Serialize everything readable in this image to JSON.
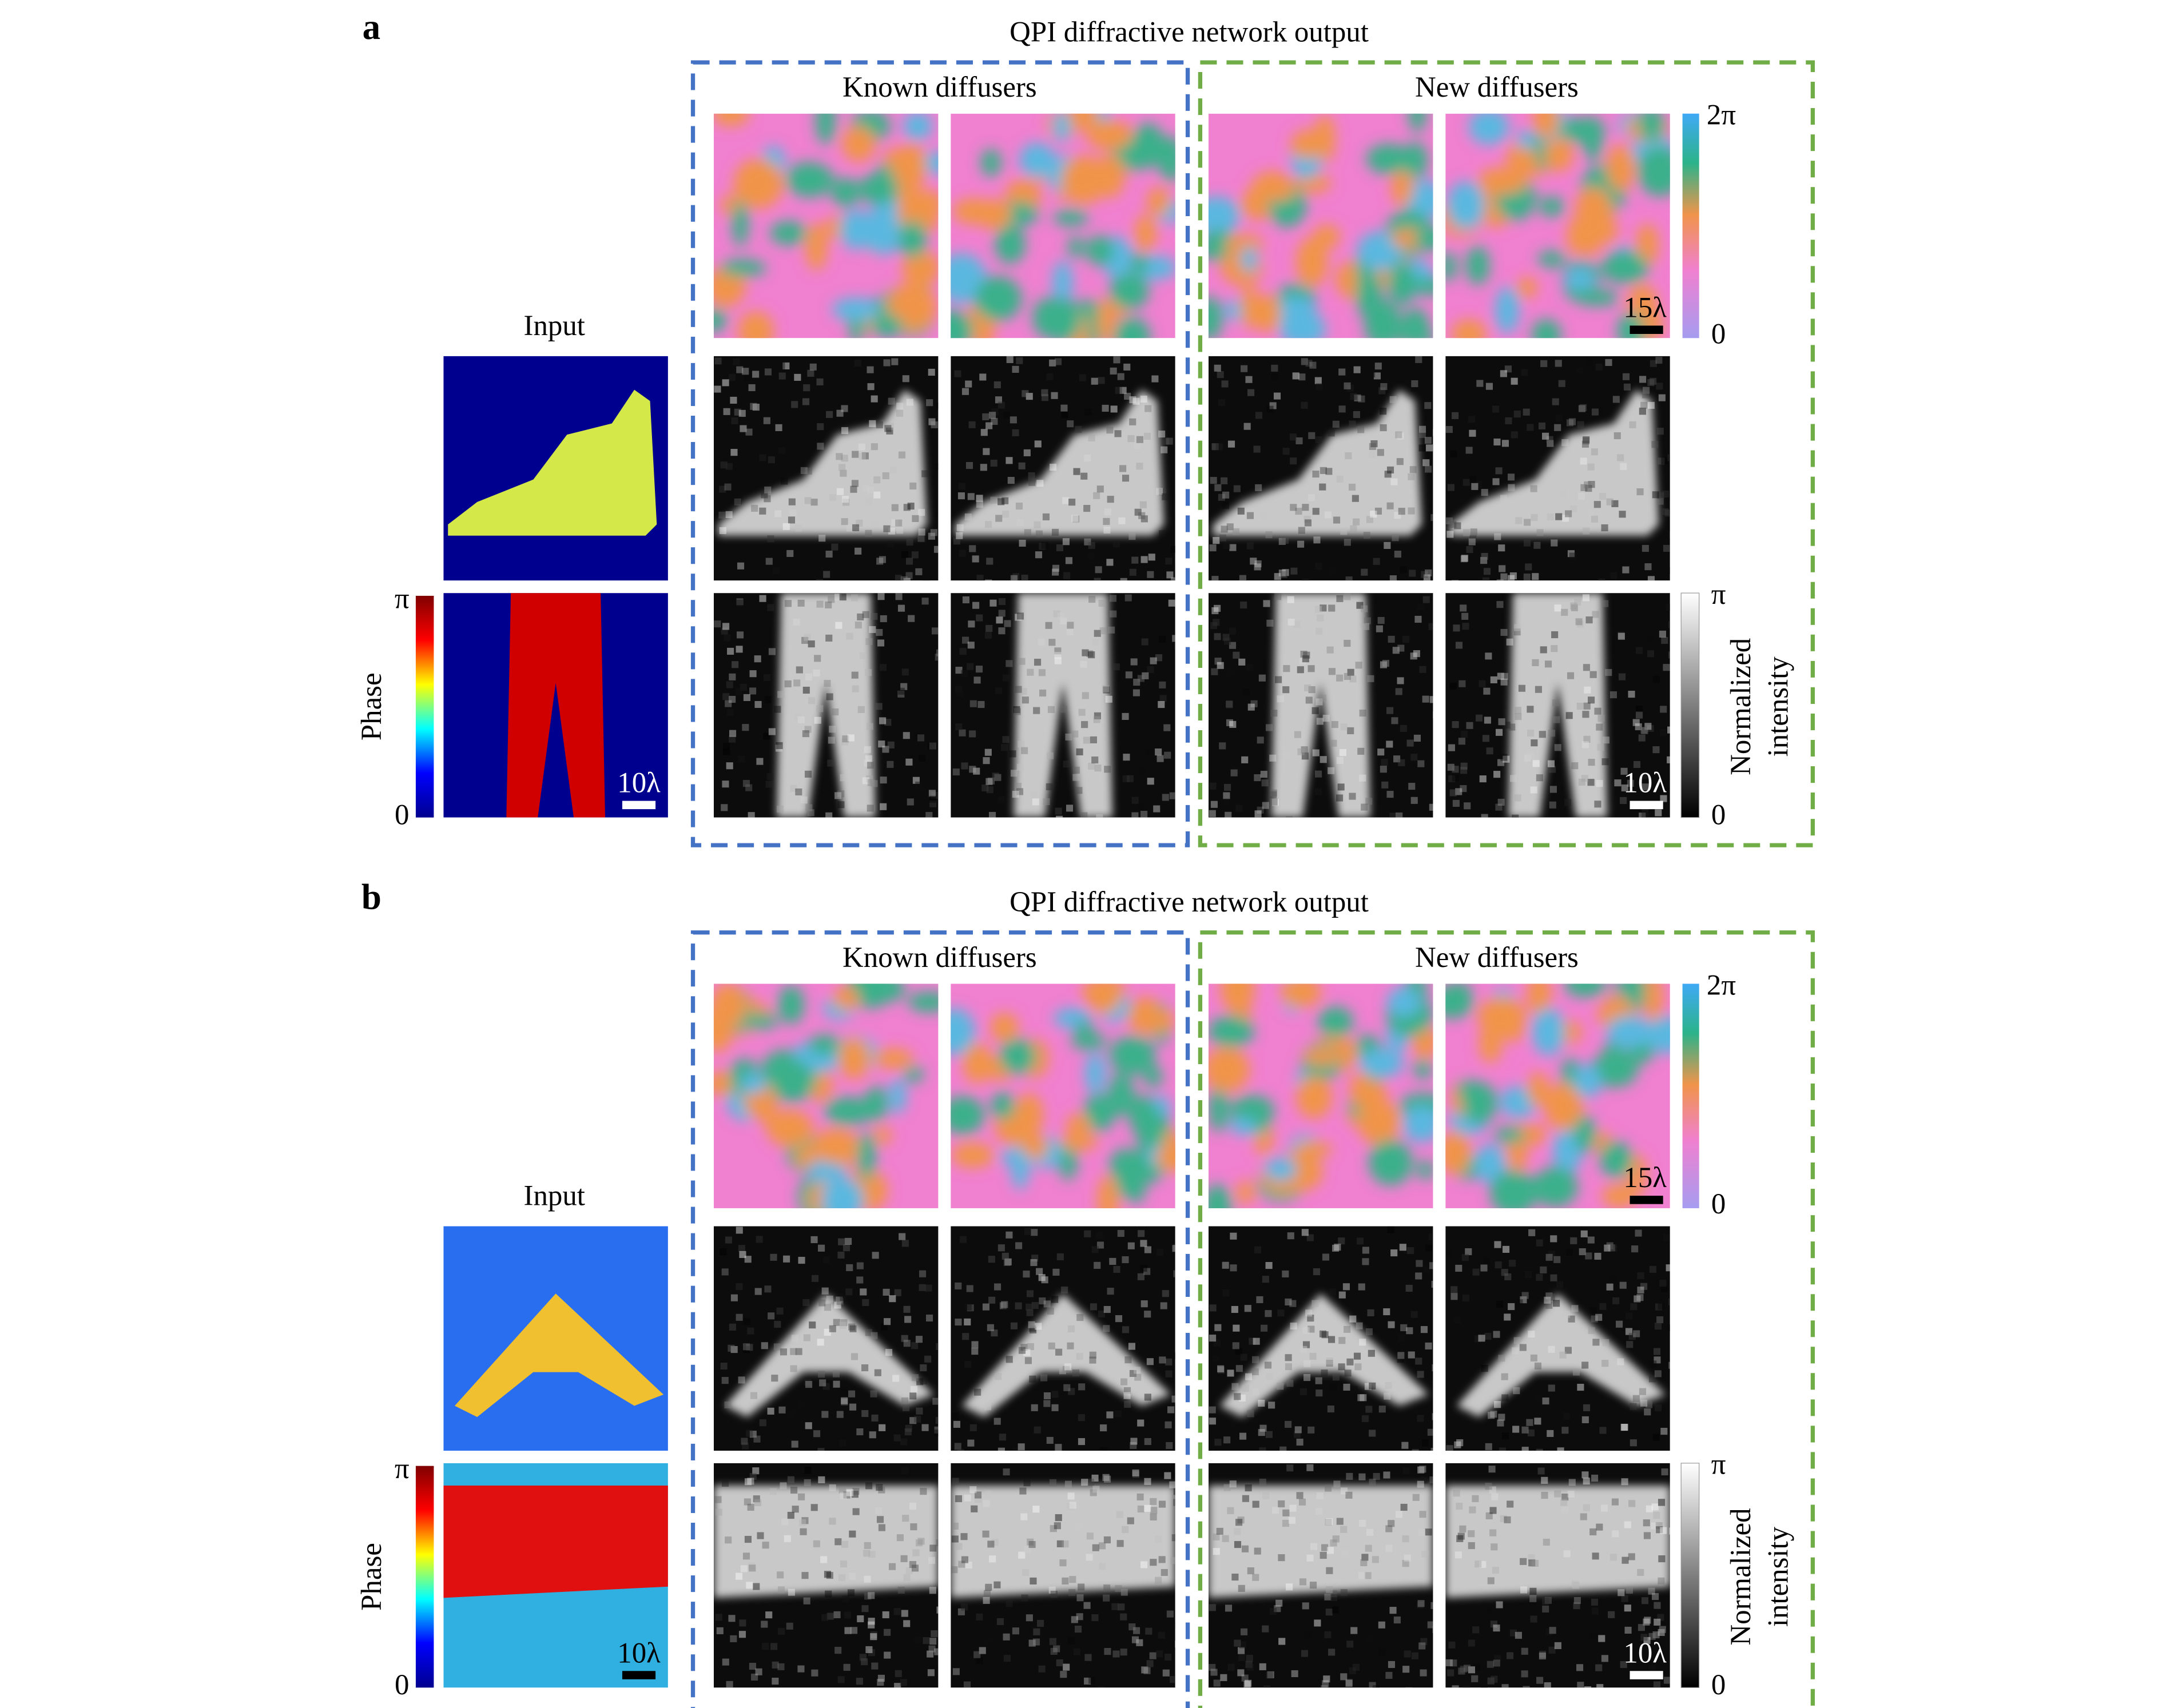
{
  "panels": [
    {
      "label": "a",
      "title": "QPI diffractive network output",
      "groups": [
        "Known diffusers",
        "New diffusers"
      ],
      "input_title": "Input",
      "phase_colorbar": {
        "label": "Phase",
        "max": "π",
        "min": "0"
      },
      "diffuser_colorbar": {
        "max": "2π",
        "min": "0"
      },
      "intensity_colorbar": {
        "label": [
          "Normalized",
          "intensity"
        ],
        "max": "π",
        "min": "0"
      },
      "scale_bars": {
        "diffuser": "15λ",
        "input": "10λ",
        "output": "10λ"
      }
    },
    {
      "label": "b",
      "title": "QPI diffractive network output",
      "groups": [
        "Known diffusers",
        "New diffusers"
      ],
      "input_title": "Input",
      "phase_colorbar": {
        "label": "Phase",
        "max": "π",
        "min": "0"
      },
      "diffuser_colorbar": {
        "max": "2π",
        "min": "0"
      },
      "intensity_colorbar": {
        "label": [
          "Normalized",
          "intensity"
        ],
        "max": "π",
        "min": "0"
      },
      "scale_bars": {
        "diffuser": "15λ",
        "input": "10λ",
        "output": "10λ"
      }
    }
  ]
}
